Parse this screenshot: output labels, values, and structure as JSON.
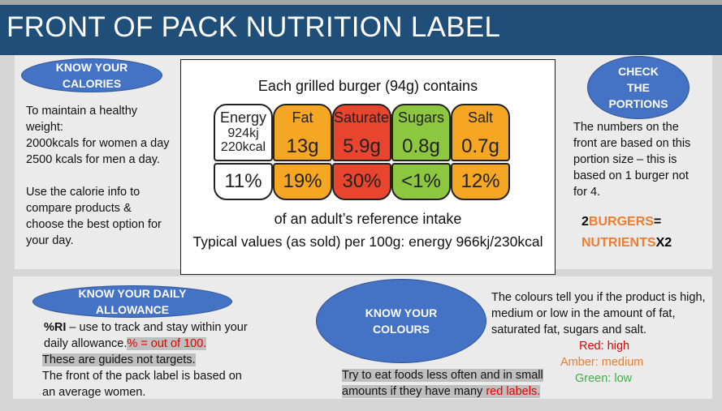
{
  "header": {
    "title": "FRONT OF PACK NUTRITION LABEL"
  },
  "calories": {
    "badge": "KNOW YOUR CALORIES",
    "lines": [
      "To maintain a healthy weight:",
      "2000kcals for women a day",
      "2500 kcals for men a day."
    ],
    "advice": "Use the calorie info to compare products & choose the best option for your day."
  },
  "label": {
    "heading": "Each grilled burger (94g) contains",
    "nutrients": [
      {
        "name": "Energy",
        "amount": [
          "924kj",
          "220kcal"
        ],
        "percent": "11%",
        "color": "#ffffff",
        "percent_color": "#ffffff"
      },
      {
        "name": "Fat",
        "amount": [
          "13g"
        ],
        "percent": "19%",
        "color": "#f5a623",
        "percent_color": "#f5a623"
      },
      {
        "name": "Saturates",
        "amount": [
          "5.9g"
        ],
        "percent": "30%",
        "color": "#e8442e",
        "percent_color": "#e8442e"
      },
      {
        "name": "Sugars",
        "amount": [
          "0.8g"
        ],
        "percent": "<1%",
        "color": "#8dc63f",
        "percent_color": "#8dc63f"
      },
      {
        "name": "Salt",
        "amount": [
          "0.7g"
        ],
        "percent": "12%",
        "color": "#f5a623",
        "percent_color": "#f5a623"
      }
    ],
    "reference": "of an adult’s reference intake",
    "typical": "Typical values (as sold) per 100g: energy 966kj/230kcal"
  },
  "portions": {
    "badge": "CHECK THE PORTIONS",
    "text": "The numbers on the front are based on this portion size – this is based on 1 burger not for 4.",
    "equation": [
      "2",
      "BURGERS",
      "=",
      "NUTRIENTS",
      "X2"
    ]
  },
  "daily": {
    "badge": "KNOW YOUR DAILY ALLOWANCE",
    "ri": "%RI",
    "ri_text": " – use to track and stay within your daily allowance.",
    "percent_note": "% = out of 100.",
    "guides": "These are guides not targets.",
    "front": "The front of the pack label is based on an average women."
  },
  "colours": {
    "badge": "KNOW YOUR COLOURS",
    "intro": "The colours tell you if the product is high, medium or low in the amount of fat, saturated fat, sugars and salt.",
    "red": "Red: high",
    "amber": "Amber: medium",
    "green": "Green: low",
    "tip": "Try to eat foods less often and in small amounts if they have many ",
    "tip_red": "red labels."
  }
}
